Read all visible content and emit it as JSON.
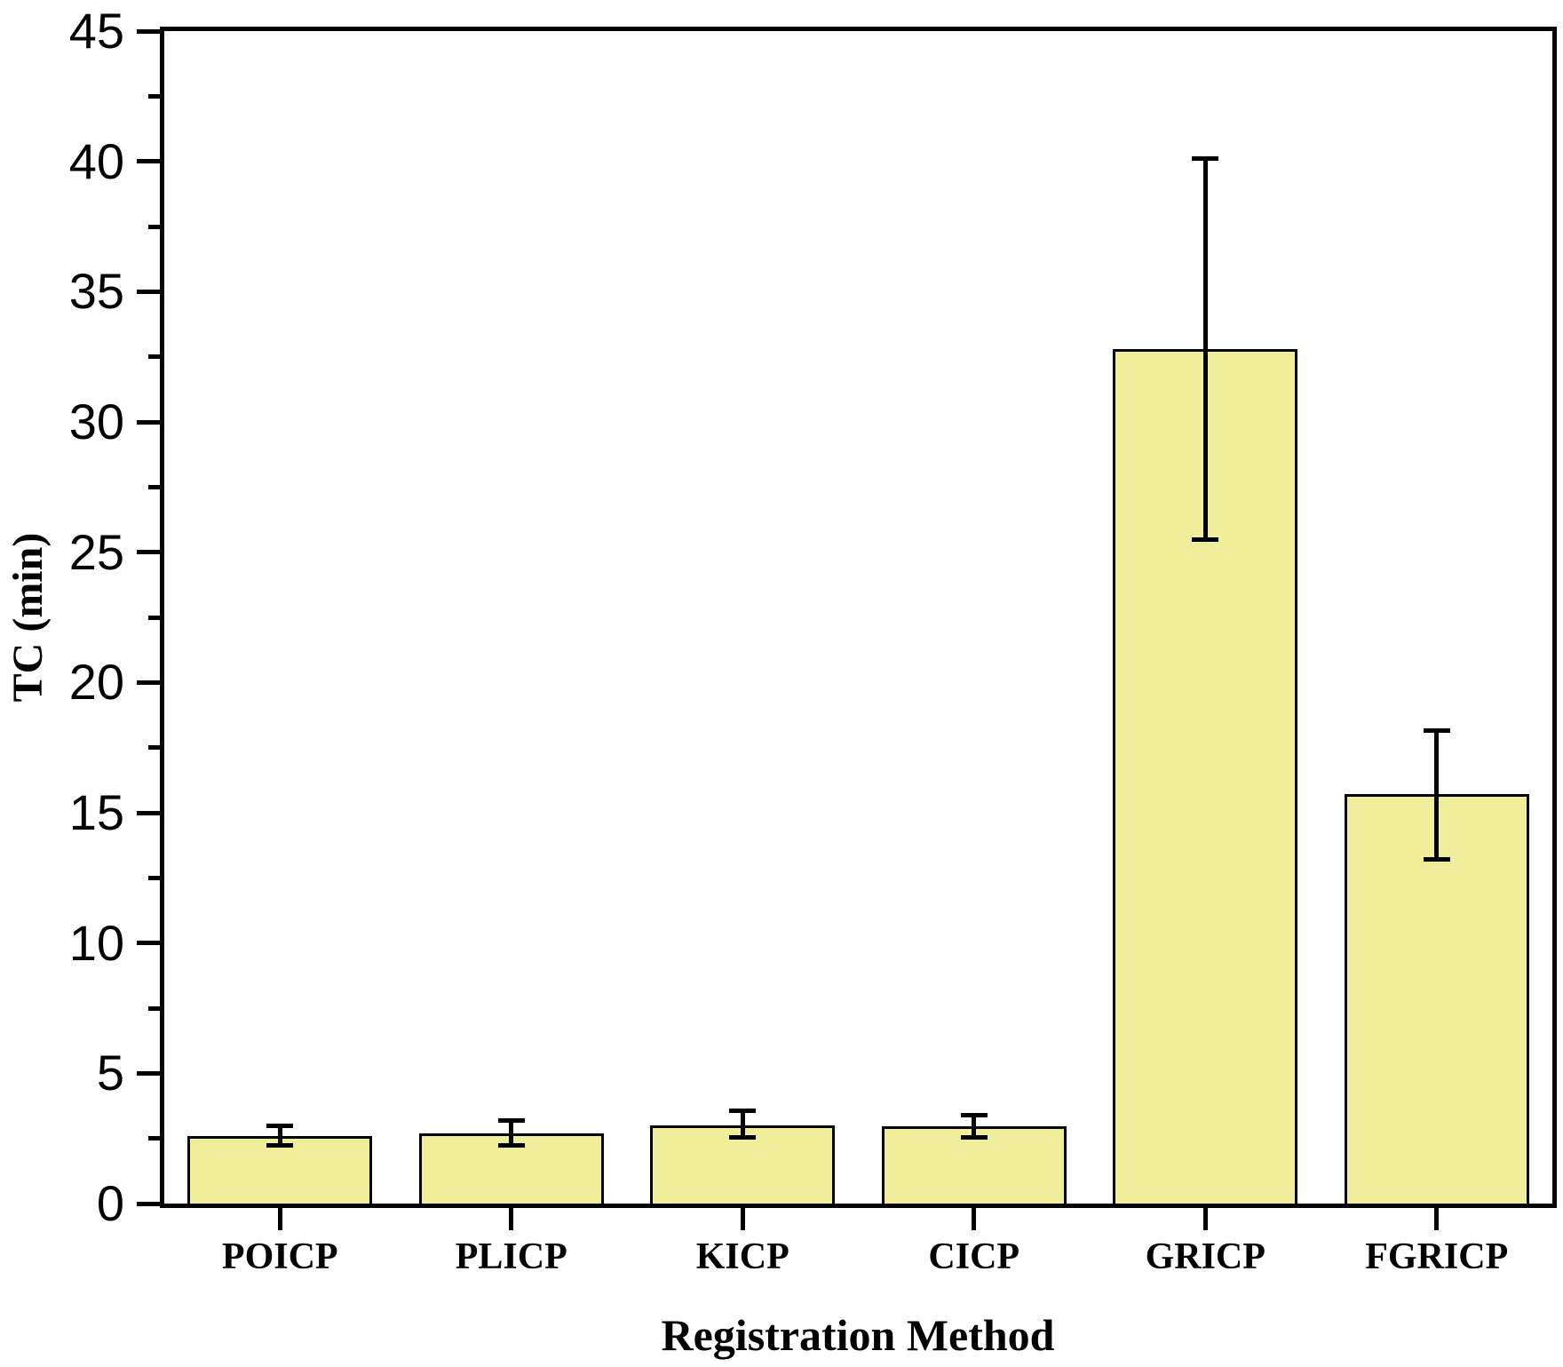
{
  "chart_data": {
    "type": "bar",
    "title": "",
    "xlabel": "Registration Method",
    "ylabel": "TC (min)",
    "categories": [
      "POICP",
      "PLICP",
      "KICP",
      "CICP",
      "GRICP",
      "FGRICP"
    ],
    "values": [
      2.6,
      2.7,
      3.0,
      2.95,
      32.8,
      15.7
    ],
    "error_plus": [
      0.4,
      0.5,
      0.55,
      0.45,
      7.3,
      2.45
    ],
    "error_minus": [
      0.35,
      0.45,
      0.45,
      0.4,
      7.3,
      2.5
    ],
    "ylim": [
      0,
      45
    ],
    "ytick_labels": [
      "0",
      "5",
      "10",
      "15",
      "20",
      "25",
      "30",
      "35",
      "40",
      "45"
    ],
    "ytick_step": 5,
    "yminor_step": 2.5,
    "bar_fill": "#F0EE9B",
    "bar_edge": "#000000",
    "error_color": "#000000",
    "axis_color": "#000000",
    "background": "#FFFFFF",
    "grid": false,
    "legend": null
  }
}
